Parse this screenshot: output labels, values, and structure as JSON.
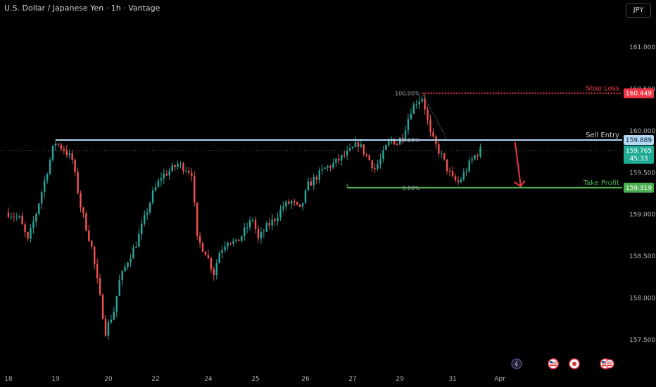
{
  "header": {
    "title": "U.S. Dollar / Japanese Yen · 1h · Vantage",
    "currency": "JPY"
  },
  "colors": {
    "up": "#26a69a",
    "down": "#ef5350",
    "stop": "#f23645",
    "entry": "#b2d8f5",
    "target": "#4caf50",
    "current": "#22ab94"
  },
  "chart_data": {
    "type": "candlestick",
    "y_ticks": [
      "161.000",
      "160.500",
      "160.000",
      "159.500",
      "159.000",
      "158.500",
      "158.000",
      "157.500"
    ],
    "y_tick_values": [
      161.0,
      160.5,
      160.0,
      159.5,
      159.0,
      158.5,
      158.0,
      157.5
    ],
    "ylim": [
      157.3,
      161.5
    ],
    "x_ticks": [
      "18",
      "19",
      "20",
      "22",
      "24",
      "25",
      "26",
      "27",
      "29",
      "31",
      "Apr"
    ],
    "x_tick_positions": [
      0,
      17,
      36,
      53,
      72,
      89,
      107,
      124,
      141,
      160,
      177
    ],
    "xlim": [
      -1,
      215
    ],
    "trade": {
      "stop_loss": {
        "label": "Stop Loss",
        "value": 160.449,
        "tag": "160.449"
      },
      "sell_entry": {
        "label": "Sell Entry",
        "value": 159.889,
        "tag": "159.889"
      },
      "take_profit": {
        "label": "Take Profit",
        "value": 159.319,
        "tag": "159.319"
      },
      "current": {
        "value": 159.765,
        "tag": "159.765",
        "countdown": "45:33"
      }
    },
    "fibonacci": {
      "levels": [
        "100.00%",
        "50.00%",
        "0.00%"
      ],
      "top_value": 160.449,
      "bottom_value": 159.319
    },
    "anchors": [
      {
        "i": 0,
        "v": 159.02
      },
      {
        "i": 4,
        "v": 158.95
      },
      {
        "i": 7,
        "v": 158.68
      },
      {
        "i": 10,
        "v": 159.02
      },
      {
        "i": 13,
        "v": 159.4
      },
      {
        "i": 16,
        "v": 159.78
      },
      {
        "i": 17,
        "v": 159.86
      },
      {
        "i": 20,
        "v": 159.78
      },
      {
        "i": 23,
        "v": 159.65
      },
      {
        "i": 26,
        "v": 159.1
      },
      {
        "i": 30,
        "v": 158.6
      },
      {
        "i": 33,
        "v": 158.0
      },
      {
        "i": 35,
        "v": 157.6
      },
      {
        "i": 38,
        "v": 157.85
      },
      {
        "i": 40,
        "v": 158.2
      },
      {
        "i": 43,
        "v": 158.45
      },
      {
        "i": 46,
        "v": 158.65
      },
      {
        "i": 49,
        "v": 158.95
      },
      {
        "i": 52,
        "v": 159.25
      },
      {
        "i": 55,
        "v": 159.45
      },
      {
        "i": 58,
        "v": 159.52
      },
      {
        "i": 61,
        "v": 159.6
      },
      {
        "i": 64,
        "v": 159.55
      },
      {
        "i": 66,
        "v": 159.5
      },
      {
        "i": 68,
        "v": 158.7
      },
      {
        "i": 71,
        "v": 158.55
      },
      {
        "i": 74,
        "v": 158.3
      },
      {
        "i": 76,
        "v": 158.55
      },
      {
        "i": 79,
        "v": 158.7
      },
      {
        "i": 82,
        "v": 158.65
      },
      {
        "i": 85,
        "v": 158.8
      },
      {
        "i": 88,
        "v": 158.95
      },
      {
        "i": 90,
        "v": 158.7
      },
      {
        "i": 93,
        "v": 158.85
      },
      {
        "i": 96,
        "v": 158.95
      },
      {
        "i": 99,
        "v": 159.1
      },
      {
        "i": 102,
        "v": 159.15
      },
      {
        "i": 105,
        "v": 159.05
      },
      {
        "i": 108,
        "v": 159.35
      },
      {
        "i": 111,
        "v": 159.45
      },
      {
        "i": 114,
        "v": 159.55
      },
      {
        "i": 117,
        "v": 159.6
      },
      {
        "i": 120,
        "v": 159.68
      },
      {
        "i": 123,
        "v": 159.75
      },
      {
        "i": 126,
        "v": 159.85
      },
      {
        "i": 129,
        "v": 159.7
      },
      {
        "i": 132,
        "v": 159.55
      },
      {
        "i": 134,
        "v": 159.65
      },
      {
        "i": 136,
        "v": 159.8
      },
      {
        "i": 138,
        "v": 159.9
      },
      {
        "i": 140,
        "v": 159.85
      },
      {
        "i": 142,
        "v": 159.95
      },
      {
        "i": 145,
        "v": 160.25
      },
      {
        "i": 147,
        "v": 160.35
      },
      {
        "i": 149,
        "v": 160.4
      },
      {
        "i": 150,
        "v": 160.28
      },
      {
        "i": 152,
        "v": 159.95
      },
      {
        "i": 154,
        "v": 159.82
      },
      {
        "i": 156,
        "v": 159.7
      },
      {
        "i": 158,
        "v": 159.55
      },
      {
        "i": 160,
        "v": 159.42
      },
      {
        "i": 162,
        "v": 159.38
      },
      {
        "i": 164,
        "v": 159.48
      },
      {
        "i": 166,
        "v": 159.6
      },
      {
        "i": 168,
        "v": 159.7
      },
      {
        "i": 170,
        "v": 159.765
      }
    ],
    "events": [
      "lightning-icon",
      "us-flag-icon",
      "japan-flag-icon",
      "us-flag-icon"
    ]
  }
}
